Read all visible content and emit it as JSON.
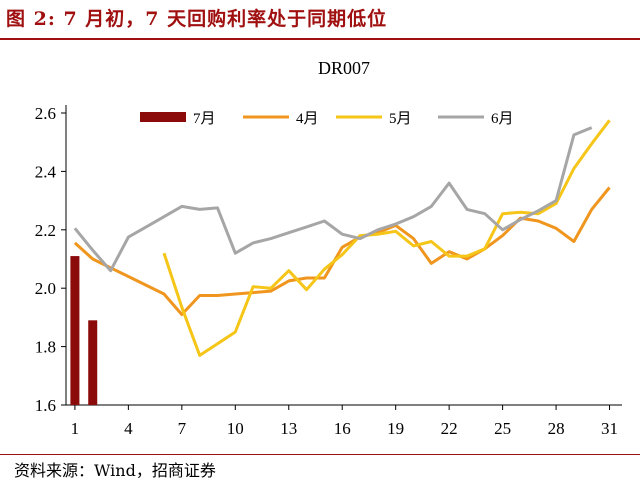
{
  "figure_title": "图 2:  7 月初，7 天回购利率处于同期低位",
  "source_note": "资料来源：Wind，招商证券",
  "chart_data": {
    "type": "line",
    "title": "DR007",
    "xlabel": "",
    "ylabel": "",
    "x_ticks": [
      1,
      4,
      7,
      10,
      13,
      16,
      19,
      22,
      25,
      28,
      31
    ],
    "y_ticks": [
      "1.6",
      "1.8",
      "2.0",
      "2.2",
      "2.4",
      "2.6"
    ],
    "xlim": [
      0.5,
      31.7
    ],
    "ylim": [
      1.6,
      2.6
    ],
    "grid": false,
    "legend_position": "top",
    "series": [
      {
        "name": "7月",
        "type": "bar",
        "color": "#8b0a0a",
        "points": [
          [
            1,
            2.11
          ],
          [
            2,
            1.89
          ]
        ]
      },
      {
        "name": "4月",
        "type": "line",
        "color": "#f0961e",
        "points": [
          [
            1,
            2.155
          ],
          [
            2,
            2.1
          ],
          [
            3,
            2.07
          ],
          [
            6,
            1.98
          ],
          [
            7,
            1.91
          ],
          [
            8,
            1.975
          ],
          [
            9,
            1.975
          ],
          [
            10,
            1.98
          ],
          [
            11,
            1.985
          ],
          [
            12,
            1.99
          ],
          [
            13,
            2.025
          ],
          [
            14,
            2.035
          ],
          [
            15,
            2.035
          ],
          [
            16,
            2.14
          ],
          [
            17,
            2.175
          ],
          [
            18,
            2.19
          ],
          [
            19,
            2.215
          ],
          [
            20,
            2.17
          ],
          [
            21,
            2.085
          ],
          [
            22,
            2.125
          ],
          [
            23,
            2.1
          ],
          [
            24,
            2.135
          ],
          [
            25,
            2.18
          ],
          [
            26,
            2.24
          ],
          [
            27,
            2.23
          ],
          [
            28,
            2.205
          ],
          [
            29,
            2.16
          ],
          [
            30,
            2.27
          ],
          [
            31,
            2.345
          ]
        ]
      },
      {
        "name": "5月",
        "type": "line",
        "color": "#f5c518",
        "points": [
          [
            6,
            2.12
          ],
          [
            7,
            1.935
          ],
          [
            8,
            1.77
          ],
          [
            9,
            1.81
          ],
          [
            10,
            1.85
          ],
          [
            11,
            2.005
          ],
          [
            12,
            2.0
          ],
          [
            13,
            2.06
          ],
          [
            14,
            1.995
          ],
          [
            15,
            2.065
          ],
          [
            16,
            2.115
          ],
          [
            17,
            2.18
          ],
          [
            18,
            2.185
          ],
          [
            19,
            2.195
          ],
          [
            20,
            2.145
          ],
          [
            21,
            2.16
          ],
          [
            22,
            2.11
          ],
          [
            23,
            2.11
          ],
          [
            24,
            2.135
          ],
          [
            25,
            2.255
          ],
          [
            26,
            2.26
          ],
          [
            27,
            2.255
          ],
          [
            28,
            2.29
          ],
          [
            29,
            2.41
          ],
          [
            30,
            2.495
          ],
          [
            31,
            2.575
          ]
        ]
      },
      {
        "name": "6月",
        "type": "line",
        "color": "#a6a6a6",
        "points": [
          [
            1,
            2.205
          ],
          [
            2,
            2.13
          ],
          [
            3,
            2.06
          ],
          [
            4,
            2.175
          ],
          [
            5,
            2.21
          ],
          [
            6,
            2.245
          ],
          [
            7,
            2.28
          ],
          [
            8,
            2.27
          ],
          [
            9,
            2.275
          ],
          [
            10,
            2.12
          ],
          [
            11,
            2.155
          ],
          [
            12,
            2.17
          ],
          [
            13,
            2.19
          ],
          [
            14,
            2.21
          ],
          [
            15,
            2.23
          ],
          [
            16,
            2.185
          ],
          [
            17,
            2.17
          ],
          [
            18,
            2.2
          ],
          [
            19,
            2.22
          ],
          [
            20,
            2.245
          ],
          [
            21,
            2.28
          ],
          [
            22,
            2.36
          ],
          [
            23,
            2.27
          ],
          [
            24,
            2.255
          ],
          [
            25,
            2.2
          ],
          [
            26,
            2.235
          ],
          [
            27,
            2.265
          ],
          [
            28,
            2.3
          ],
          [
            29,
            2.525
          ],
          [
            30,
            2.55
          ]
        ]
      }
    ]
  }
}
